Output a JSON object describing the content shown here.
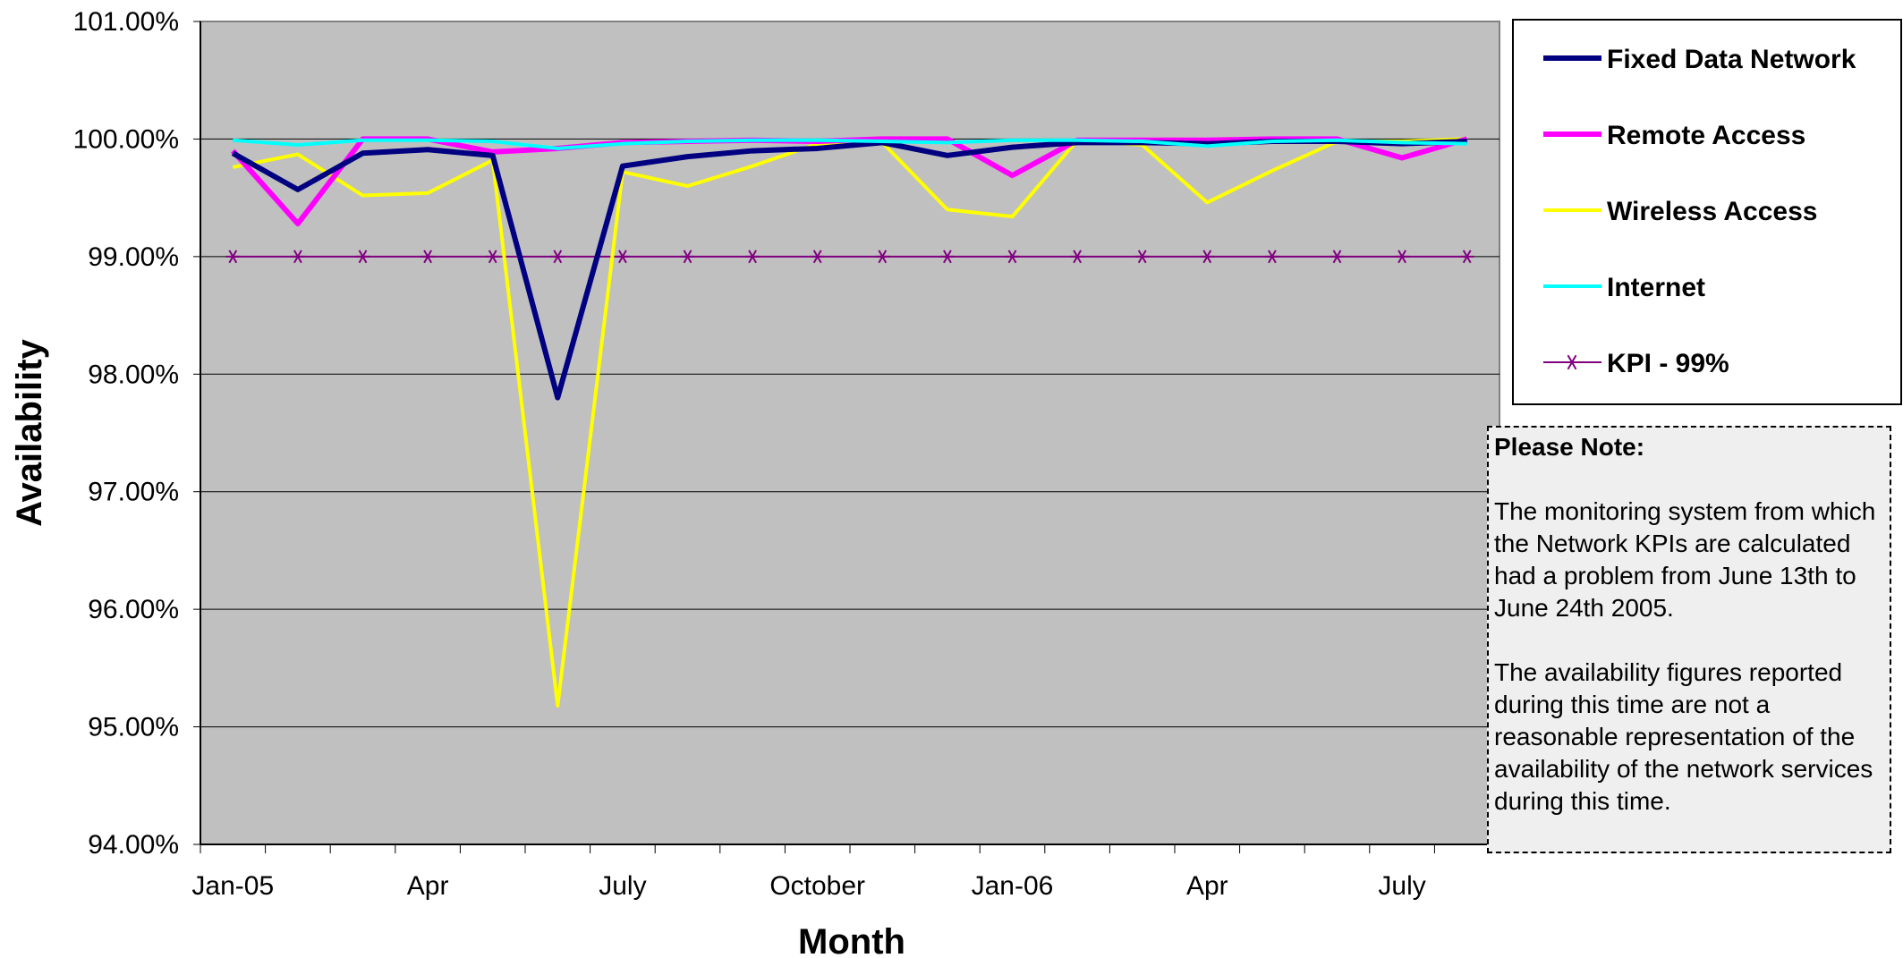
{
  "chart_data": {
    "type": "line",
    "title": "",
    "xlabel": "Month",
    "ylabel": "Availability",
    "ylim": [
      94.0,
      101.0
    ],
    "yticks": [
      "94.00%",
      "95.00%",
      "96.00%",
      "97.00%",
      "98.00%",
      "99.00%",
      "100.00%",
      "101.00%"
    ],
    "ytick_values": [
      94,
      95,
      96,
      97,
      98,
      99,
      100,
      101
    ],
    "x": [
      "Jan-05",
      "Feb-05",
      "Mar-05",
      "Apr-05",
      "May-05",
      "Jun-05",
      "Jul-05",
      "Aug-05",
      "Sep-05",
      "Oct-05",
      "Nov-05",
      "Dec-05",
      "Jan-06",
      "Feb-06",
      "Mar-06",
      "Apr-06",
      "May-06",
      "Jun-06",
      "Jul-06",
      "Aug-06"
    ],
    "xtick_labels": [
      {
        "label": "Jan-05",
        "month": "Jan-05"
      },
      {
        "label": "Apr",
        "month": "Apr-05"
      },
      {
        "label": "July",
        "month": "Jul-05"
      },
      {
        "label": "October",
        "month": "Oct-05"
      },
      {
        "label": "Jan-06",
        "month": "Jan-06"
      },
      {
        "label": "Apr",
        "month": "Apr-06"
      },
      {
        "label": "July",
        "month": "Jul-06"
      }
    ],
    "grid": "horizontal",
    "background": "#c0c0c0",
    "legend_position": "right",
    "series": [
      {
        "name": "Fixed Data Network",
        "color": "#000080",
        "width": 6,
        "values": [
          99.88,
          99.57,
          99.88,
          99.91,
          99.86,
          97.8,
          99.77,
          99.85,
          99.9,
          99.92,
          99.97,
          99.86,
          99.93,
          99.97,
          99.97,
          99.96,
          99.98,
          99.98,
          99.96,
          99.98
        ]
      },
      {
        "name": "Remote Access",
        "color": "#ff00ff",
        "width": 6,
        "values": [
          99.9,
          99.28,
          100.0,
          100.0,
          99.89,
          99.92,
          99.97,
          99.98,
          99.99,
          99.98,
          100.0,
          100.0,
          99.69,
          99.99,
          99.99,
          99.99,
          100.0,
          100.0,
          99.84,
          100.0
        ]
      },
      {
        "name": "Wireless Access",
        "color": "#ffff00",
        "width": 4,
        "values": [
          99.76,
          99.87,
          99.52,
          99.54,
          99.82,
          95.18,
          99.72,
          99.6,
          99.77,
          99.96,
          99.97,
          99.4,
          99.34,
          99.99,
          99.95,
          99.46,
          99.73,
          99.98,
          99.98,
          100.0
        ]
      },
      {
        "name": "Internet",
        "color": "#00ffff",
        "width": 4,
        "values": [
          99.99,
          99.95,
          99.99,
          99.99,
          99.98,
          99.92,
          99.96,
          99.98,
          99.99,
          99.99,
          99.98,
          99.97,
          99.99,
          99.99,
          99.98,
          99.94,
          99.98,
          99.99,
          99.97,
          99.96
        ]
      },
      {
        "name": "KPI - 99%",
        "color": "#800080",
        "width": 2,
        "marker": "star",
        "values": [
          99,
          99,
          99,
          99,
          99,
          99,
          99,
          99,
          99,
          99,
          99,
          99,
          99,
          99,
          99,
          99,
          99,
          99,
          99,
          99
        ]
      }
    ]
  },
  "note": {
    "title": "Please Note:",
    "paragraph1": "The monitoring system from which the Network KPIs are calculated had a problem from June 13th to June 24th 2005.",
    "paragraph2": "The availability figures reported during this time are not a reasonable representation of the availability of the network services during this time."
  }
}
